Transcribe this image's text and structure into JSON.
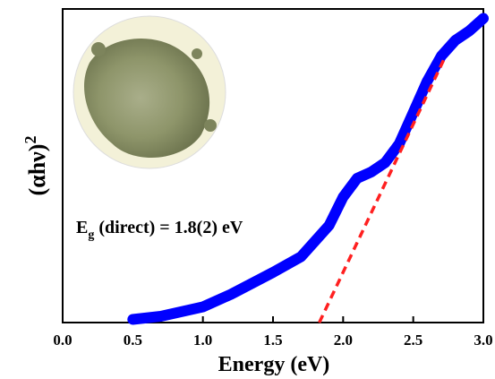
{
  "chart_data": {
    "type": "line",
    "xlabel": "Energy (eV)",
    "ylabel": [
      "(αhν)",
      "2"
    ],
    "annotation": [
      "E",
      "g",
      " (direct) = 1.8(2) eV"
    ],
    "xlim": [
      0,
      3.0
    ],
    "ylim": [
      0,
      1
    ],
    "xticks": [
      {
        "value": 0,
        "label": "0.0"
      },
      0.5,
      {
        "value": 1,
        "label": "1.0"
      },
      1.5,
      {
        "value": 2,
        "label": "2.0"
      },
      2.5,
      {
        "value": 3,
        "label": "3.0"
      }
    ],
    "series": [
      {
        "color": "#0000ff",
        "width": 12,
        "dashed": false,
        "x": [
          0.5,
          0.7,
          1.0,
          1.2,
          1.5,
          1.7,
          1.9,
          2.0,
          2.1,
          2.2,
          2.3,
          2.4,
          2.5,
          2.6,
          2.7,
          2.8,
          2.9,
          3.0
        ],
        "values": [
          0.01,
          0.02,
          0.05,
          0.09,
          0.16,
          0.21,
          0.31,
          0.4,
          0.46,
          0.48,
          0.51,
          0.57,
          0.67,
          0.77,
          0.85,
          0.9,
          0.93,
          0.97
        ]
      },
      {
        "color": "#ff2020",
        "width": 3.5,
        "dashed": true,
        "x": [
          1.83,
          2.72
        ],
        "values": [
          0,
          0.84
        ]
      }
    ]
  }
}
